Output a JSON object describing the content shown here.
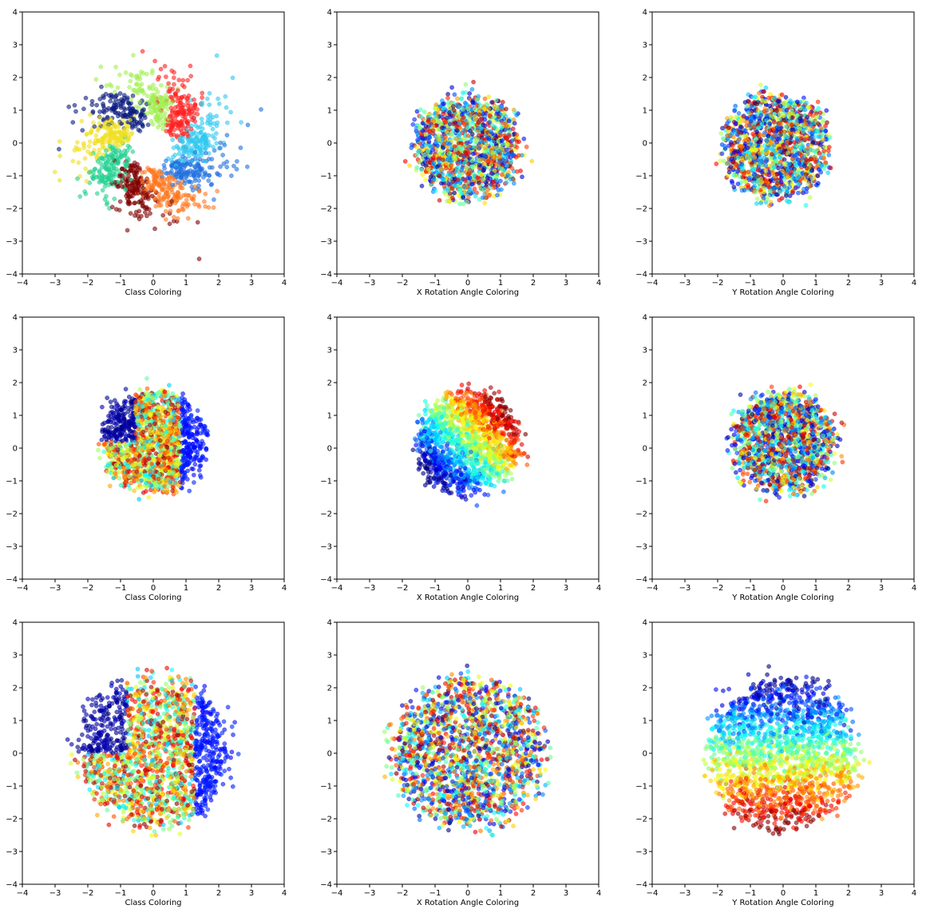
{
  "figure": {
    "title": "",
    "rows": 3,
    "cols": 3
  },
  "chart_data": [
    {
      "type": "scatter",
      "panel": "r1c1",
      "xlabel": "Class Coloring",
      "xlim": [
        -4,
        4
      ],
      "ylim": [
        -4,
        4
      ],
      "xticks": [
        "−4",
        "−3",
        "−2",
        "−1",
        "0",
        "1",
        "2",
        "3",
        "4"
      ],
      "yticks": [
        "−4",
        "−3",
        "−2",
        "−1",
        "0",
        "1",
        "2",
        "3",
        "4"
      ],
      "grid": false,
      "coloring": "class",
      "pattern": "pinwheel",
      "n_points": 1400,
      "seed": 11,
      "palette": [
        "#0a1a80",
        "#f0e020",
        "#20d090",
        "#800000",
        "#ff7820",
        "#2070e0",
        "#30c8f0",
        "#ff2020",
        "#a0f050"
      ]
    },
    {
      "type": "scatter",
      "panel": "r1c2",
      "xlabel": "X Rotation Angle Coloring",
      "xlim": [
        -4,
        4
      ],
      "ylim": [
        -4,
        4
      ],
      "xticks": [
        "−4",
        "−3",
        "−2",
        "−1",
        "0",
        "1",
        "2",
        "3",
        "4"
      ],
      "yticks": [
        "−4",
        "−3",
        "−2",
        "−1",
        "0",
        "1",
        "2",
        "3",
        "4"
      ],
      "grid": false,
      "coloring": "random",
      "pattern": "blob",
      "center": [
        0.0,
        -0.1
      ],
      "radius": 1.6,
      "n_points": 1400,
      "seed": 22
    },
    {
      "type": "scatter",
      "panel": "r1c3",
      "xlabel": "Y Rotation Angle Coloring",
      "xlim": [
        -4,
        4
      ],
      "ylim": [
        -4,
        4
      ],
      "xticks": [
        "−4",
        "−3",
        "−2",
        "−1",
        "0",
        "1",
        "2",
        "3",
        "4"
      ],
      "yticks": [
        "−4",
        "−3",
        "−2",
        "−1",
        "0",
        "1",
        "2",
        "3",
        "4"
      ],
      "grid": false,
      "coloring": "random",
      "pattern": "blob",
      "center": [
        -0.2,
        -0.1
      ],
      "radius": 1.6,
      "n_points": 1400,
      "seed": 33
    },
    {
      "type": "scatter",
      "panel": "r2c1",
      "xlabel": "Class Coloring",
      "xlim": [
        -4,
        4
      ],
      "ylim": [
        -4,
        4
      ],
      "xticks": [
        "−4",
        "−3",
        "−2",
        "−1",
        "0",
        "1",
        "2",
        "3",
        "4"
      ],
      "yticks": [
        "−4",
        "−3",
        "−2",
        "−1",
        "0",
        "1",
        "2",
        "3",
        "4"
      ],
      "grid": false,
      "coloring": "class-regions",
      "pattern": "blob",
      "center": [
        0.0,
        0.2
      ],
      "radius": 1.55,
      "n_points": 1500,
      "seed": 44
    },
    {
      "type": "scatter",
      "panel": "r2c2",
      "xlabel": "X Rotation Angle Coloring",
      "xlim": [
        -4,
        4
      ],
      "ylim": [
        -4,
        4
      ],
      "xticks": [
        "−4",
        "−3",
        "−2",
        "−1",
        "0",
        "1",
        "2",
        "3",
        "4"
      ],
      "yticks": [
        "−4",
        "−3",
        "−2",
        "−1",
        "0",
        "1",
        "2",
        "3",
        "4"
      ],
      "grid": false,
      "coloring": "gradient-angle",
      "gradient_angle_deg": 45,
      "pattern": "blob",
      "center": [
        0.0,
        0.2
      ],
      "radius": 1.55,
      "n_points": 1500,
      "seed": 55
    },
    {
      "type": "scatter",
      "panel": "r2c3",
      "xlabel": "Y Rotation Angle Coloring",
      "xlim": [
        -4,
        4
      ],
      "ylim": [
        -4,
        4
      ],
      "xticks": [
        "−4",
        "−3",
        "−2",
        "−1",
        "0",
        "1",
        "2",
        "3",
        "4"
      ],
      "yticks": [
        "−4",
        "−3",
        "−2",
        "−1",
        "0",
        "1",
        "2",
        "3",
        "4"
      ],
      "grid": false,
      "coloring": "random",
      "pattern": "blob",
      "center": [
        0.0,
        0.2
      ],
      "radius": 1.55,
      "n_points": 1500,
      "seed": 66
    },
    {
      "type": "scatter",
      "panel": "r3c1",
      "xlabel": "Class Coloring",
      "xlim": [
        -4,
        4
      ],
      "ylim": [
        -4,
        4
      ],
      "xticks": [
        "−4",
        "−3",
        "−2",
        "−1",
        "0",
        "1",
        "2",
        "3",
        "4"
      ],
      "yticks": [
        "−4",
        "−3",
        "−2",
        "−1",
        "0",
        "1",
        "2",
        "3",
        "4"
      ],
      "grid": false,
      "coloring": "class-regions",
      "pattern": "blob",
      "center": [
        0.0,
        0.0
      ],
      "radius": 2.3,
      "n_points": 1800,
      "seed": 77
    },
    {
      "type": "scatter",
      "panel": "r3c2",
      "xlabel": "X Rotation Angle Coloring",
      "xlim": [
        -4,
        4
      ],
      "ylim": [
        -4,
        4
      ],
      "xticks": [
        "−4",
        "−3",
        "−2",
        "−1",
        "0",
        "1",
        "2",
        "3",
        "4"
      ],
      "yticks": [
        "−4",
        "−3",
        "−2",
        "−1",
        "0",
        "1",
        "2",
        "3",
        "4"
      ],
      "grid": false,
      "coloring": "random",
      "pattern": "blob",
      "center": [
        0.0,
        0.0
      ],
      "radius": 2.3,
      "n_points": 1800,
      "seed": 88
    },
    {
      "type": "scatter",
      "panel": "r3c3",
      "xlabel": "Y Rotation Angle Coloring",
      "xlim": [
        -4,
        4
      ],
      "ylim": [
        -4,
        4
      ],
      "xticks": [
        "−4",
        "−3",
        "−2",
        "−1",
        "0",
        "1",
        "2",
        "3",
        "4"
      ],
      "yticks": [
        "−4",
        "−3",
        "−2",
        "−1",
        "0",
        "1",
        "2",
        "3",
        "4"
      ],
      "grid": false,
      "coloring": "gradient-angle",
      "gradient_angle_deg": 270,
      "pattern": "blob",
      "center": [
        0.0,
        0.0
      ],
      "radius": 2.3,
      "n_points": 1800,
      "seed": 99
    }
  ]
}
